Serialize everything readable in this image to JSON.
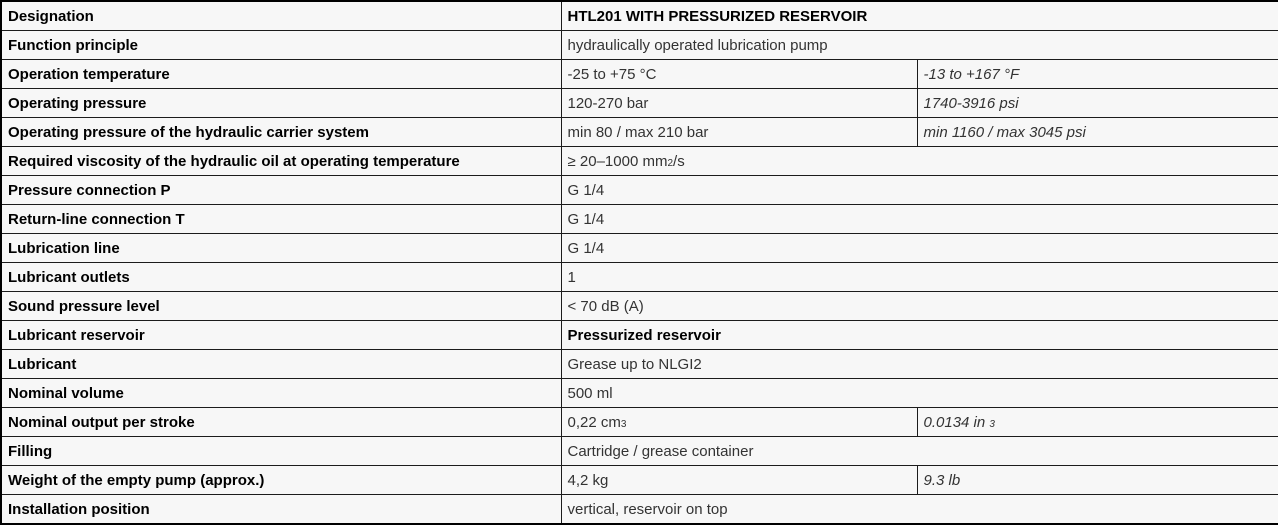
{
  "table": {
    "title": "HTL201 technical specification table",
    "colors": {
      "cell_bg": "#f7f7f7",
      "outer_border": "#000000",
      "inner_border": "#1c1c1c",
      "label_text": "#000000",
      "value_text": "#333333"
    },
    "rows": [
      {
        "label": "Designation",
        "value": "HTL201 WITH PRESSURIZED RESERVOIR",
        "bold": true,
        "imperial": null
      },
      {
        "label": "Function principle",
        "value": "hydraulically operated lubrication pump",
        "imperial": null
      },
      {
        "label": "Operation temperature",
        "value": "-25 to +75 °C",
        "imperial": "-13 to +167 °F"
      },
      {
        "label": "Operating pressure",
        "value": "120-270 bar",
        "imperial": "1740-3916 psi"
      },
      {
        "label": "Operating pressure of the hydraulic carrier system",
        "value": "min 80 / max 210 bar",
        "imperial": "min 1160 / max 3045 psi"
      },
      {
        "label": "Required viscosity of the hydraulic oil at operating temperature",
        "value": [
          {
            "t": "≥ 20–1000 mm"
          },
          {
            "t": "2",
            "small": true
          },
          {
            "t": "/s"
          }
        ],
        "imperial": null
      },
      {
        "label": "Pressure connection P",
        "value": "G 1/4",
        "imperial": null
      },
      {
        "label": "Return-line connection T",
        "value": "G 1/4",
        "imperial": null
      },
      {
        "label": "Lubrication line",
        "value": "G 1/4",
        "imperial": null
      },
      {
        "label": "Lubricant outlets",
        "value": "1",
        "imperial": null
      },
      {
        "label": "Sound pressure level",
        "value": "< 70 dB (A)",
        "imperial": null
      },
      {
        "label": "Lubricant reservoir",
        "value": "Pressurized reservoir",
        "bold": true,
        "imperial": null
      },
      {
        "label": "Lubricant",
        "value": "Grease up to NLGI2",
        "imperial": null
      },
      {
        "label": "Nominal volume",
        "value": "500 ml",
        "imperial": null
      },
      {
        "label": "Nominal output per stroke",
        "value": [
          {
            "t": "0,22 cm"
          },
          {
            "t": "3",
            "small": true
          }
        ],
        "imperial": [
          {
            "t": "0.0134 in "
          },
          {
            "t": "3",
            "small": true
          }
        ]
      },
      {
        "label": "Filling",
        "value": "Cartridge / grease container",
        "imperial": null
      },
      {
        "label": "Weight of the empty pump (approx.)",
        "value": "4,2 kg",
        "imperial": "9.3 lb"
      },
      {
        "label": "Installation position",
        "value": "vertical, reservoir on top",
        "imperial": null
      }
    ]
  }
}
